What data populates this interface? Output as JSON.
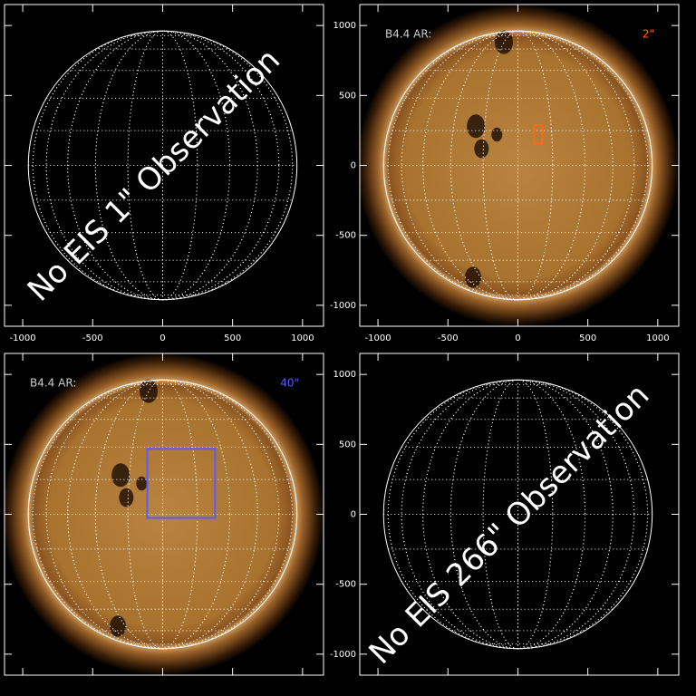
{
  "chart_data": {
    "type": "solar-grid",
    "xlim": [
      -1130,
      1150
    ],
    "ylim": [
      -1150,
      1150
    ],
    "xticks": [
      -1000,
      -500,
      0,
      500,
      1000
    ],
    "yticks": [
      -1000,
      -500,
      0,
      500,
      1000
    ],
    "limb_radius": 960,
    "grid_step_deg": 15,
    "panels": [
      {
        "notice": "No EIS 1\" Observation",
        "image": false,
        "x_tick_labels": true,
        "y_tick_labels": false
      },
      {
        "label": "B4.4 AR:",
        "size_label": "2\"",
        "color": "#ff6a1a",
        "box": {
          "x": [
            116,
            175
          ],
          "y": [
            156,
            286
          ]
        },
        "image": true,
        "x_tick_labels": true,
        "y_tick_labels": true
      },
      {
        "label": "B4.4 AR:",
        "size_label": "40\"",
        "color": "#5a5aff",
        "box": {
          "x": [
            -110,
            375
          ],
          "y": [
            -26,
            468
          ]
        },
        "image": true,
        "x_tick_labels": false,
        "y_tick_labels": false
      },
      {
        "notice": "No EIS 266\" Observation",
        "image": false,
        "x_tick_labels": false,
        "y_tick_labels": true
      }
    ]
  }
}
